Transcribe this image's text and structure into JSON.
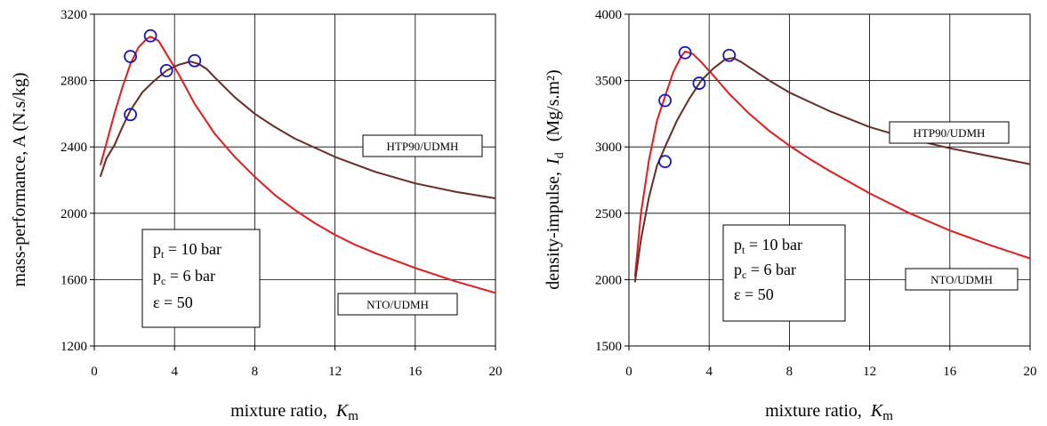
{
  "chart_data": [
    {
      "type": "line",
      "xlabel": "mixture ratio,",
      "xlabel_var": "K",
      "xlabel_sub": "m",
      "ylabel": "mass-performance,  A (N.s/kg)",
      "xlim": [
        0,
        20
      ],
      "ylim": [
        1200,
        3200
      ],
      "xticks": [
        "0",
        "4",
        "8",
        "12",
        "16",
        "20"
      ],
      "yticks": [
        "1200",
        "1600",
        "2000",
        "2400",
        "2800",
        "3200"
      ],
      "grid": true,
      "conditions": {
        "pt_var": "p",
        "pt_sub": "t",
        "pt_val": " = 10 bar",
        "pc_var": "p",
        "pc_sub": "c",
        "pc_val": " = 6 bar",
        "eps": "ε = 50"
      },
      "annotations": [
        "HTP90/UDMH",
        "NTO/UDMH"
      ],
      "series": [
        {
          "name": "NTO/UDMH",
          "color": "#e8191b",
          "x": [
            0.3,
            0.6,
            1.0,
            1.4,
            1.8,
            2.2,
            2.6,
            2.8,
            3.2,
            3.6,
            4.2,
            5.0,
            6.0,
            7.0,
            8.0,
            9.0,
            10.0,
            11.0,
            12.0,
            13.0,
            14.0,
            16.0,
            18.0,
            20.0
          ],
          "y": [
            2290,
            2420,
            2600,
            2760,
            2900,
            3000,
            3050,
            3065,
            3040,
            2960,
            2840,
            2660,
            2480,
            2340,
            2220,
            2110,
            2020,
            1940,
            1870,
            1810,
            1760,
            1670,
            1590,
            1520
          ]
        },
        {
          "name": "HTP90/UDMH",
          "color": "#6b2a22",
          "x": [
            0.3,
            0.6,
            1.0,
            1.4,
            1.8,
            2.4,
            3.0,
            3.6,
            4.2,
            4.8,
            5.2,
            5.6,
            6.0,
            7.0,
            8.0,
            9.0,
            10.0,
            12.0,
            14.0,
            16.0,
            18.0,
            20.0
          ],
          "y": [
            2220,
            2330,
            2410,
            2520,
            2620,
            2730,
            2800,
            2860,
            2895,
            2915,
            2900,
            2870,
            2820,
            2700,
            2600,
            2520,
            2450,
            2340,
            2250,
            2180,
            2130,
            2090
          ]
        }
      ],
      "markers": {
        "color": "#1414cc",
        "x": [
          1.8,
          2.8,
          1.8,
          3.6,
          5.0
        ],
        "y": [
          2945,
          3070,
          2595,
          2860,
          2920
        ]
      }
    },
    {
      "type": "line",
      "xlabel": "mixture ratio,",
      "xlabel_var": "K",
      "xlabel_sub": "m",
      "ylabel_prefix": "density-impulse,",
      "ylabel_var": "I",
      "ylabel_sub": "d",
      "ylabel_unit": "(Mg/s.m²)",
      "xlim": [
        0,
        20
      ],
      "ylim": [
        1500,
        4000
      ],
      "xticks": [
        "0",
        "4",
        "8",
        "12",
        "16",
        "20"
      ],
      "yticks": [
        "1500",
        "2000",
        "2500",
        "3000",
        "3500",
        "4000"
      ],
      "grid": true,
      "conditions": {
        "pt_var": "p",
        "pt_sub": "t",
        "pt_val": " = 10 bar",
        "pc_var": "p",
        "pc_sub": "c",
        "pc_val": " = 6 bar",
        "eps": "ε = 50"
      },
      "annotations": [
        "HTP90/UDMH",
        "NTO/UDMH"
      ],
      "series": [
        {
          "name": "NTO/UDMH",
          "color": "#e8191b",
          "x": [
            0.3,
            0.6,
            1.0,
            1.4,
            1.8,
            2.2,
            2.6,
            2.8,
            3.2,
            3.6,
            4.2,
            5.0,
            6.0,
            7.0,
            8.0,
            9.0,
            10.0,
            12.0,
            14.0,
            16.0,
            18.0,
            20.0
          ],
          "y": [
            2020,
            2500,
            2900,
            3200,
            3380,
            3560,
            3680,
            3720,
            3700,
            3640,
            3540,
            3400,
            3250,
            3120,
            3010,
            2910,
            2820,
            2650,
            2500,
            2370,
            2260,
            2160
          ]
        },
        {
          "name": "HTP90/UDMH",
          "color": "#6b2a22",
          "x": [
            0.3,
            0.6,
            1.0,
            1.4,
            1.8,
            2.4,
            3.0,
            3.6,
            4.2,
            4.8,
            5.2,
            5.6,
            6.0,
            7.0,
            8.0,
            9.0,
            10.0,
            12.0,
            14.0,
            16.0,
            18.0,
            20.0
          ],
          "y": [
            1980,
            2300,
            2620,
            2860,
            3000,
            3200,
            3360,
            3500,
            3590,
            3660,
            3670,
            3640,
            3600,
            3500,
            3410,
            3340,
            3270,
            3150,
            3060,
            2990,
            2930,
            2870
          ]
        }
      ],
      "markers": {
        "color": "#1414cc",
        "x": [
          1.8,
          2.8,
          1.8,
          3.5,
          5.0
        ],
        "y": [
          3350,
          3710,
          2890,
          3480,
          3690
        ]
      }
    }
  ]
}
